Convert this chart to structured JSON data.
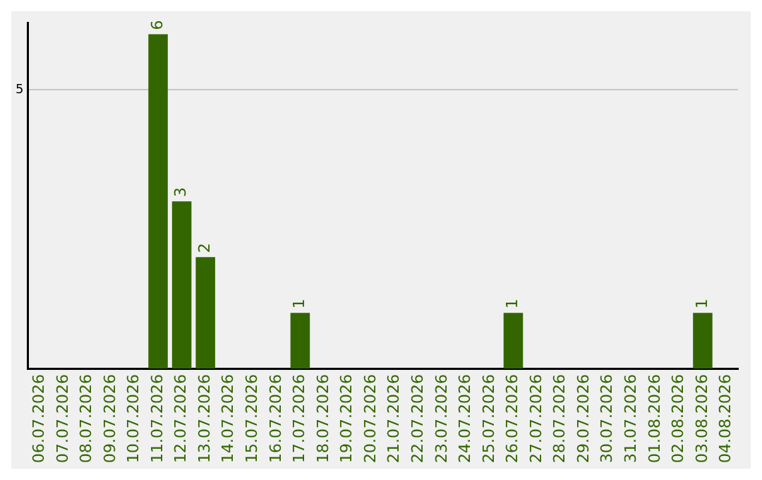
{
  "chart_data": {
    "type": "bar",
    "categories": [
      "06.07.2026",
      "07.07.2026",
      "08.07.2026",
      "09.07.2026",
      "10.07.2026",
      "11.07.2026",
      "12.07.2026",
      "13.07.2026",
      "14.07.2026",
      "15.07.2026",
      "16.07.2026",
      "17.07.2026",
      "18.07.2026",
      "19.07.2026",
      "20.07.2026",
      "21.07.2026",
      "22.07.2026",
      "23.07.2026",
      "24.07.2026",
      "25.07.2026",
      "26.07.2026",
      "27.07.2026",
      "28.07.2026",
      "29.07.2026",
      "30.07.2026",
      "31.07.2026",
      "01.08.2026",
      "02.08.2026",
      "03.08.2026",
      "04.08.2026"
    ],
    "values": [
      0,
      0,
      0,
      0,
      0,
      6,
      3,
      2,
      0,
      0,
      0,
      1,
      0,
      0,
      0,
      0,
      0,
      0,
      0,
      0,
      1,
      0,
      0,
      0,
      0,
      0,
      0,
      0,
      1,
      0
    ],
    "value_labels": [
      null,
      null,
      null,
      null,
      null,
      "6",
      "3",
      "2",
      null,
      null,
      null,
      "1",
      null,
      null,
      null,
      null,
      null,
      null,
      null,
      null,
      "1",
      null,
      null,
      null,
      null,
      null,
      null,
      null,
      "1",
      null
    ],
    "color": "#336600",
    "ylim": [
      0,
      6.2
    ],
    "yticks": [
      5
    ],
    "grid": "y",
    "legend": false
  }
}
